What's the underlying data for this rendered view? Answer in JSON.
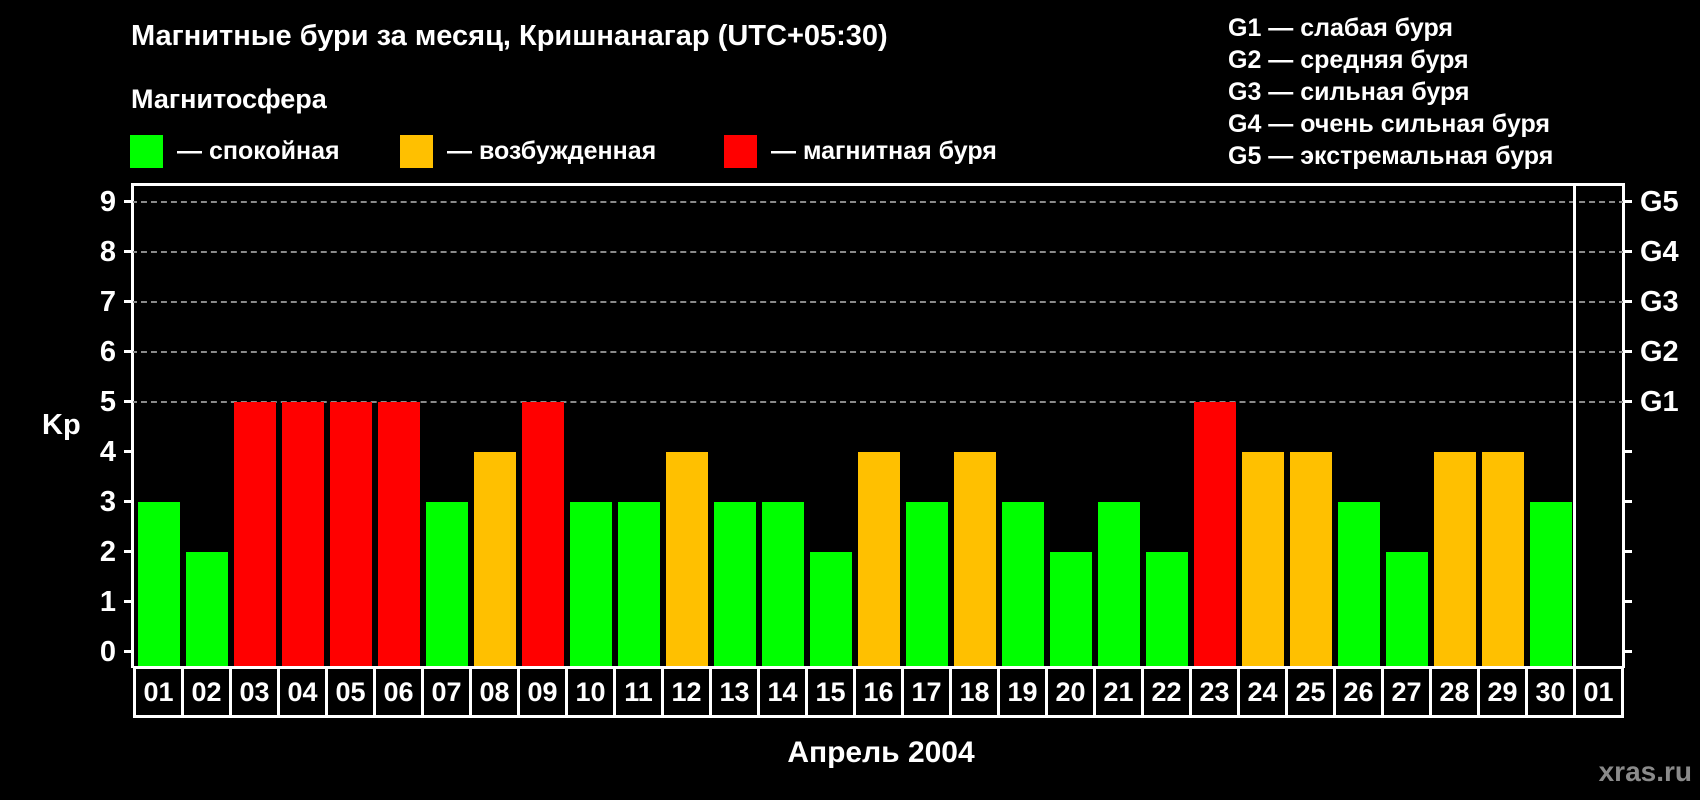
{
  "header": {
    "title": "Магнитные бури за месяц, Кришнанагар (UTC+05:30)",
    "subtitle": "Магнитосфера"
  },
  "legend": [
    {
      "label": "— спокойная",
      "color": "#00ff00"
    },
    {
      "label": "— возбужденная",
      "color": "#ffc000"
    },
    {
      "label": "— магнитная буря",
      "color": "#ff0000"
    }
  ],
  "g_legend": [
    "G1 — слабая буря",
    "G2 — средняя буря",
    "G3 — сильная буря",
    "G4 — очень сильная буря",
    "G5 — экстремальная буря"
  ],
  "colors": {
    "quiet": "#00ff00",
    "active": "#ffc000",
    "storm": "#ff0000",
    "grid": "#8a8a8a",
    "watermark": "#8a8a8a"
  },
  "watermark": "xras.ru",
  "chart_data": {
    "type": "bar",
    "title": "Магнитные бури за месяц, Кришнанагар (UTC+05:30)",
    "xlabel": "Апрель 2004",
    "ylabel": "Kp",
    "ylim": [
      0,
      9
    ],
    "yticks": [
      "0",
      "1",
      "2",
      "3",
      "4",
      "5",
      "6",
      "7",
      "8",
      "9"
    ],
    "right_axis_labels": [
      {
        "y": 5,
        "label": "G1"
      },
      {
        "y": 6,
        "label": "G2"
      },
      {
        "y": 7,
        "label": "G3"
      },
      {
        "y": 8,
        "label": "G4"
      },
      {
        "y": 9,
        "label": "G5"
      }
    ],
    "grid": "dashed horizontal at 5–9",
    "categories": [
      "01",
      "02",
      "03",
      "04",
      "05",
      "06",
      "07",
      "08",
      "09",
      "10",
      "11",
      "12",
      "13",
      "14",
      "15",
      "16",
      "17",
      "18",
      "19",
      "20",
      "21",
      "22",
      "23",
      "24",
      "25",
      "26",
      "27",
      "28",
      "29",
      "30",
      "01"
    ],
    "values": [
      3,
      2,
      5,
      5,
      5,
      5,
      3,
      4,
      5,
      3,
      3,
      4,
      3,
      3,
      2,
      4,
      3,
      4,
      3,
      2,
      3,
      2,
      5,
      4,
      4,
      3,
      2,
      4,
      4,
      3,
      null
    ],
    "status": [
      "quiet",
      "quiet",
      "storm",
      "storm",
      "storm",
      "storm",
      "quiet",
      "active",
      "storm",
      "quiet",
      "quiet",
      "active",
      "quiet",
      "quiet",
      "quiet",
      "active",
      "quiet",
      "active",
      "quiet",
      "quiet",
      "quiet",
      "quiet",
      "storm",
      "active",
      "active",
      "quiet",
      "quiet",
      "active",
      "active",
      "quiet",
      null
    ]
  }
}
